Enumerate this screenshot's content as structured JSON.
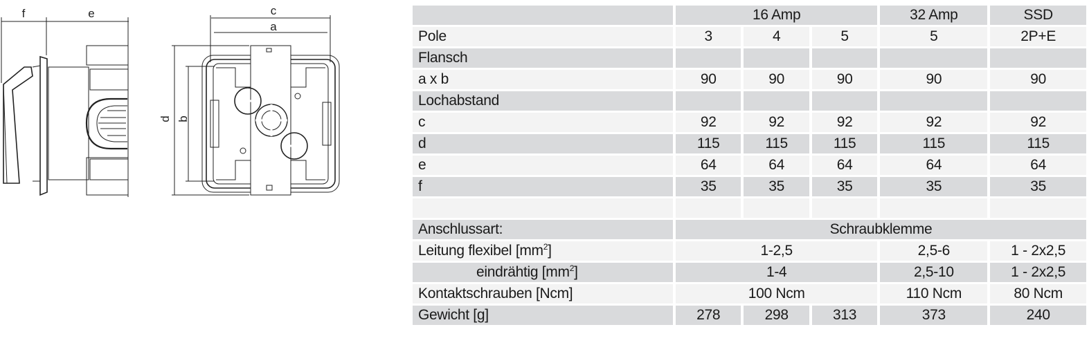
{
  "drawing": {
    "dimension_labels": {
      "f": "f",
      "e": "e",
      "c": "c",
      "a": "a",
      "d": "d",
      "b": "b"
    }
  },
  "table": {
    "header": {
      "label": "",
      "groups": [
        "16 Amp",
        "32 Amp",
        "SSD"
      ]
    },
    "rows": {
      "pole": {
        "label": "Pole",
        "values": [
          "3",
          "4",
          "5",
          "5",
          "2P+E"
        ]
      },
      "flansch": {
        "label": "Flansch"
      },
      "axb": {
        "label": "a x b",
        "values": [
          "90",
          "90",
          "90",
          "90",
          "90"
        ]
      },
      "lochabstand": {
        "label": "Lochabstand"
      },
      "c": {
        "label": "c",
        "values": [
          "92",
          "92",
          "92",
          "92",
          "92"
        ]
      },
      "d": {
        "label": "d",
        "values": [
          "115",
          "115",
          "115",
          "115",
          "115"
        ]
      },
      "e": {
        "label": "e",
        "values": [
          "64",
          "64",
          "64",
          "64",
          "64"
        ]
      },
      "f": {
        "label": "f",
        "values": [
          "35",
          "35",
          "35",
          "35",
          "35"
        ]
      },
      "anschlussart": {
        "label": "Anschlussart:",
        "value": "Schraubklemme"
      },
      "leitung_flexibel": {
        "label": "Leitung  flexibel [mm",
        "sup": "2",
        "label_end": "]",
        "values": [
          "1-2,5",
          "2,5-6",
          "1 - 2x2,5"
        ]
      },
      "eindraehtig": {
        "label": "eindrähtig [mm",
        "sup": "2",
        "label_end": "]",
        "values": [
          "1-4",
          "2,5-10",
          "1 - 2x2,5"
        ]
      },
      "kontaktschrauben": {
        "label": "Kontaktschrauben [Ncm]",
        "values": [
          "100 Ncm",
          "110 Ncm",
          "80 Ncm"
        ]
      },
      "gewicht": {
        "label": "Gewicht [g]",
        "values": [
          "278",
          "298",
          "313",
          "373",
          "240"
        ]
      }
    }
  }
}
